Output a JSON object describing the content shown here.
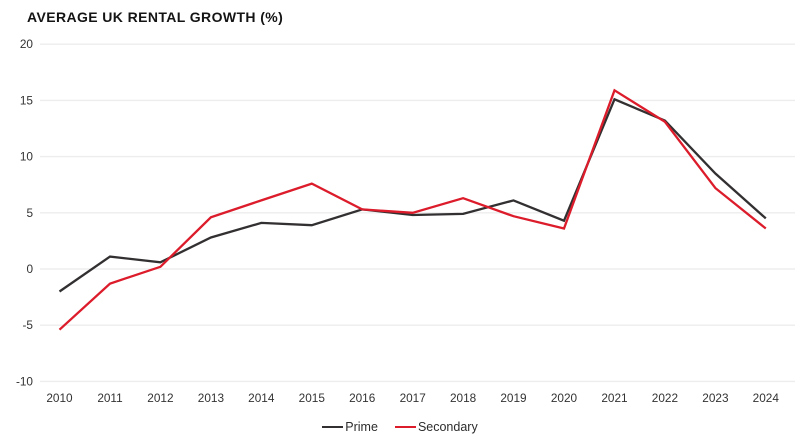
{
  "chart_data": {
    "type": "line",
    "title": "AVERAGE UK RENTAL GROWTH (%)",
    "xlabel": "",
    "ylabel": "",
    "categories": [
      "2010",
      "2011",
      "2012",
      "2013",
      "2014",
      "2015",
      "2016",
      "2017",
      "2018",
      "2019",
      "2020",
      "2021",
      "2022",
      "2023",
      "2024"
    ],
    "yticks": [
      20,
      15,
      10,
      5,
      0,
      -5,
      -10
    ],
    "ylim": [
      -10,
      20
    ],
    "grid": "horizontal-only",
    "legend_position": "bottom-center",
    "series": [
      {
        "name": "Prime",
        "color": "#333032",
        "values": [
          -2.0,
          1.1,
          0.6,
          2.8,
          4.1,
          3.9,
          5.3,
          4.8,
          4.9,
          6.1,
          4.3,
          15.1,
          13.2,
          8.5,
          4.5
        ]
      },
      {
        "name": "Secondary",
        "color": "#dc1c2b",
        "values": [
          -5.4,
          -1.3,
          0.2,
          4.6,
          6.1,
          7.6,
          5.3,
          5.0,
          6.3,
          4.7,
          3.6,
          15.9,
          13.1,
          7.2,
          3.6
        ]
      }
    ],
    "colors": {
      "background": "#ffffff",
      "grid": "#ededed",
      "tick_label": "#333333",
      "title": "#141414"
    }
  }
}
